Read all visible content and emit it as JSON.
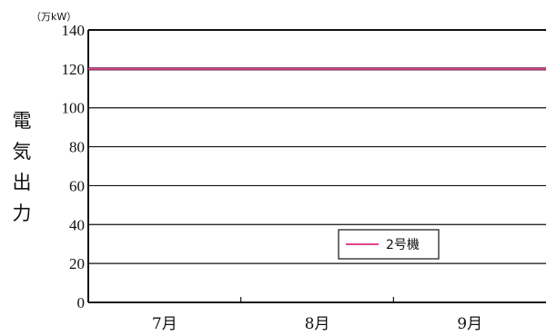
{
  "chart_data": {
    "type": "line",
    "unit": "（万kW）",
    "ylabel": "電気出力",
    "ylim": [
      0,
      140
    ],
    "yticks": [
      "0",
      "20",
      "40",
      "60",
      "80",
      "100",
      "120",
      "140"
    ],
    "categories": [
      "7月",
      "8月",
      "9月"
    ],
    "grid": true,
    "legend_position": "bottom-right",
    "series": [
      {
        "name": "2号機",
        "color": "#e0448c",
        "values": [
          120,
          120,
          120
        ]
      }
    ]
  }
}
